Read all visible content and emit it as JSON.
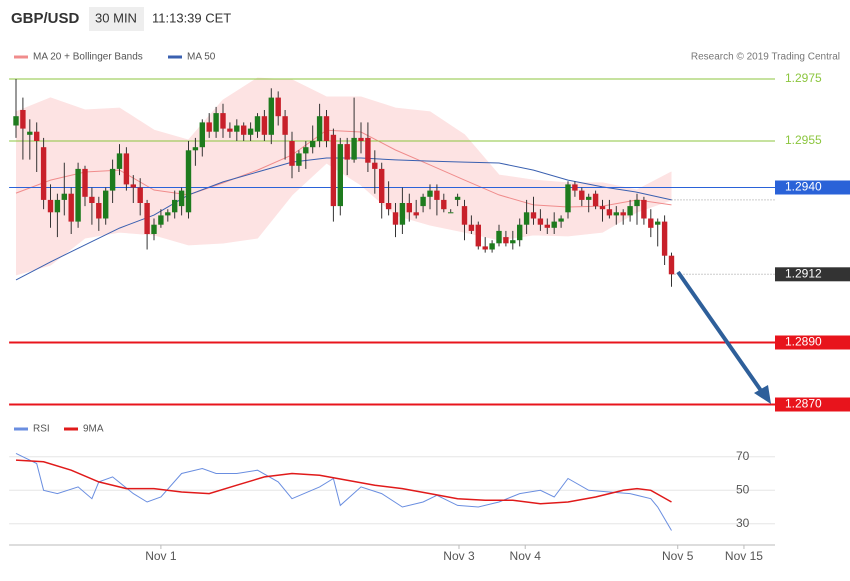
{
  "chart_data": {
    "type": "candlestick",
    "title": "GBP/USD",
    "timeframe": "30 MIN",
    "time": "11:13:39 CET",
    "source": "Research © 2019 Trading Central",
    "up_color": "#1e7b1e",
    "down_color": "#c8202a",
    "xlim": [
      -1,
      110
    ],
    "ylim": [
      1.2867,
      1.2978
    ],
    "xticks": [
      {
        "value": 21,
        "label": "Nov 1"
      },
      {
        "value": 64.2,
        "label": "Nov 3"
      },
      {
        "value": 73.8,
        "label": "Nov 4"
      },
      {
        "value": 95.9,
        "label": "Nov 5"
      },
      {
        "value": 105.5,
        "label": "Nov 15"
      }
    ],
    "open": [
      1.296,
      1.2965,
      1.2957,
      1.2958,
      1.2953,
      1.2936,
      1.2932,
      1.2936,
      1.2938,
      1.2929,
      1.2946,
      1.2937,
      1.2935,
      1.293,
      1.2939,
      1.2946,
      1.2951,
      1.2941,
      1.294,
      1.2935,
      1.2925,
      1.2928,
      1.2931,
      1.2932,
      1.2934,
      1.2932,
      1.2952,
      1.2953,
      1.2961,
      1.2958,
      1.2964,
      1.2959,
      1.2958,
      1.296,
      1.2957,
      1.2958,
      1.2963,
      1.2957,
      1.2969,
      1.2963,
      1.2955,
      1.2947,
      1.2951,
      1.2953,
      1.2955,
      1.2963,
      1.2957,
      1.2934,
      1.2954,
      1.2949,
      1.2956,
      1.2956,
      1.2948,
      1.2946,
      1.2935,
      1.2932,
      1.2928,
      1.2935,
      1.2932,
      1.2934,
      1.2937,
      1.2939,
      1.2936,
      1.2932,
      1.2936,
      1.2934,
      1.2928,
      1.2928,
      1.2921,
      1.292,
      1.2922,
      1.2924,
      1.2922,
      1.2923,
      1.2928,
      1.2932,
      1.293,
      1.2928,
      1.2927,
      1.2929,
      1.2932,
      1.2941,
      1.2939,
      1.2936,
      1.2938,
      1.2934,
      1.2933,
      1.2931,
      1.2932,
      1.2931,
      1.2934,
      1.2936,
      1.293,
      1.2928,
      1.2929,
      1.2918
    ],
    "high": [
      1.2975,
      1.2969,
      1.2962,
      1.2961,
      1.2956,
      1.2941,
      1.2938,
      1.2948,
      1.294,
      1.2948,
      1.2947,
      1.294,
      1.2937,
      1.294,
      1.2949,
      1.2954,
      1.2953,
      1.2944,
      1.2943,
      1.2936,
      1.293,
      1.2933,
      1.2933,
      1.2939,
      1.294,
      1.2955,
      1.2956,
      1.2962,
      1.2964,
      1.2966,
      1.2967,
      1.2961,
      1.2962,
      1.2961,
      1.2961,
      1.2964,
      1.2965,
      1.2972,
      1.2971,
      1.2965,
      1.2958,
      1.2952,
      1.2955,
      1.296,
      1.2967,
      1.2965,
      1.2959,
      1.2956,
      1.2956,
      1.2969,
      1.2961,
      1.2961,
      1.2952,
      1.2948,
      1.2942,
      1.2935,
      1.294,
      1.2938,
      1.2936,
      1.2938,
      1.2941,
      1.2941,
      1.2938,
      1.2933,
      1.2938,
      1.2936,
      1.2931,
      1.2929,
      1.2924,
      1.2923,
      1.2928,
      1.2926,
      1.2926,
      1.293,
      1.2936,
      1.2937,
      1.2933,
      1.293,
      1.2932,
      1.2931,
      1.2942,
      1.2942,
      1.294,
      1.2938,
      1.2939,
      1.2936,
      1.2936,
      1.2934,
      1.2933,
      1.2936,
      1.2938,
      1.2937,
      1.2933,
      1.293,
      1.2931,
      1.2919
    ],
    "low": [
      1.2956,
      1.2949,
      1.2949,
      1.2945,
      1.2933,
      1.2927,
      1.2924,
      1.2931,
      1.2925,
      1.2927,
      1.2934,
      1.2928,
      1.2926,
      1.2928,
      1.2935,
      1.2944,
      1.2939,
      1.2935,
      1.2931,
      1.292,
      1.2923,
      1.2927,
      1.2929,
      1.293,
      1.2931,
      1.293,
      1.2947,
      1.295,
      1.2956,
      1.2956,
      1.2956,
      1.2956,
      1.2955,
      1.2955,
      1.2955,
      1.2956,
      1.2955,
      1.2954,
      1.296,
      1.2949,
      1.2943,
      1.2945,
      1.2946,
      1.2951,
      1.2953,
      1.2953,
      1.2929,
      1.2931,
      1.2944,
      1.2948,
      1.2951,
      1.2945,
      1.2938,
      1.293,
      1.2931,
      1.2924,
      1.2925,
      1.2929,
      1.293,
      1.2932,
      1.2933,
      1.2931,
      1.2932,
      1.2932,
      1.2934,
      1.2923,
      1.2925,
      1.292,
      1.2919,
      1.2919,
      1.2921,
      1.2921,
      1.292,
      1.2921,
      1.2925,
      1.2928,
      1.2926,
      1.2925,
      1.2925,
      1.2927,
      1.293,
      1.2937,
      1.2934,
      1.2932,
      1.2933,
      1.2929,
      1.293,
      1.2928,
      1.2928,
      1.2929,
      1.2928,
      1.2928,
      1.2924,
      1.2921,
      1.2915,
      1.2908
    ],
    "close": [
      1.2963,
      1.2959,
      1.2958,
      1.2955,
      1.2936,
      1.2932,
      1.2936,
      1.2938,
      1.2929,
      1.2946,
      1.2937,
      1.2935,
      1.293,
      1.2939,
      1.2946,
      1.2951,
      1.2941,
      1.294,
      1.2935,
      1.2925,
      1.2928,
      1.2931,
      1.2932,
      1.2936,
      1.2939,
      1.2952,
      1.2953,
      1.2961,
      1.2958,
      1.2964,
      1.2959,
      1.2958,
      1.296,
      1.2957,
      1.2959,
      1.2963,
      1.2957,
      1.2969,
      1.2963,
      1.2957,
      1.2947,
      1.2951,
      1.2953,
      1.2955,
      1.2963,
      1.2955,
      1.2934,
      1.2954,
      1.2949,
      1.2956,
      1.2955,
      1.2948,
      1.2946,
      1.2935,
      1.2933,
      1.2928,
      1.2935,
      1.2932,
      1.2931,
      1.2937,
      1.2939,
      1.2936,
      1.2933,
      1.2932,
      1.2937,
      1.2928,
      1.2926,
      1.2921,
      1.292,
      1.2922,
      1.2926,
      1.2922,
      1.2923,
      1.2928,
      1.2932,
      1.293,
      1.2928,
      1.2927,
      1.2929,
      1.293,
      1.2941,
      1.2939,
      1.2936,
      1.2937,
      1.2934,
      1.2933,
      1.2931,
      1.2932,
      1.2931,
      1.2934,
      1.2936,
      1.293,
      1.2927,
      1.2929,
      1.2918,
      1.2912
    ],
    "bollinger": {
      "name": "MA 20 + Bollinger Bands",
      "color": "#f08c8c",
      "fill": "#fde3e3",
      "x": [
        0,
        5,
        10,
        15,
        20,
        25,
        30,
        35,
        40,
        45,
        50,
        55,
        60,
        65,
        70,
        75,
        80,
        85,
        90,
        95
      ],
      "ma": [
        1.29382,
        1.29424,
        1.2945,
        1.29456,
        1.29392,
        1.29376,
        1.29415,
        1.29456,
        1.29505,
        1.29585,
        1.29579,
        1.29521,
        1.29473,
        1.29424,
        1.29376,
        1.29344,
        1.29337,
        1.2934,
        1.2936,
        1.29344
      ],
      "upper": [
        1.29644,
        1.29689,
        1.2965,
        1.29656,
        1.29585,
        1.29553,
        1.29682,
        1.29753,
        1.29747,
        1.29692,
        1.29692,
        1.29656,
        1.29644,
        1.2957,
        1.2944,
        1.29424,
        1.29415,
        1.29415,
        1.29392,
        1.2945
      ],
      "lower": [
        1.29118,
        1.2915,
        1.29237,
        1.29256,
        1.29247,
        1.29215,
        1.29221,
        1.29237,
        1.29376,
        1.29479,
        1.29408,
        1.29311,
        1.29279,
        1.29256,
        1.29231,
        1.29247,
        1.29244,
        1.29256,
        1.29321,
        1.2936
      ]
    },
    "ma50": {
      "name": "MA 50",
      "color": "#3a60b0",
      "x": [
        0,
        5,
        10,
        15,
        20,
        25,
        30,
        35,
        40,
        45,
        50,
        55,
        60,
        65,
        70,
        75,
        80,
        85,
        90,
        95
      ],
      "values": [
        1.29102,
        1.2916,
        1.29215,
        1.29269,
        1.29311,
        1.29376,
        1.29418,
        1.2945,
        1.29482,
        1.29495,
        1.29495,
        1.29489,
        1.29485,
        1.29482,
        1.29479,
        1.29456,
        1.29424,
        1.29402,
        1.29385,
        1.2936
      ]
    },
    "levels": [
      {
        "price": 1.2975,
        "color": "#8cc63f",
        "style": "text"
      },
      {
        "price": 1.2955,
        "color": "#8cc63f",
        "style": "text"
      },
      {
        "price": {
          "value": 1.294,
          "label": "1.2940"
        },
        "color": "#2a62d8",
        "style": "box"
      },
      {
        "price": 1.2912,
        "color": "#333333",
        "style": "dotted-box"
      },
      {
        "price": {
          "value": 1.289,
          "label": "1.2890"
        },
        "color": "#e8141c",
        "style": "box"
      },
      {
        "price": {
          "value": 1.287,
          "label": "1.2870"
        },
        "color": "#e8141c",
        "style": "box"
      }
    ],
    "marker_level": 1.2936,
    "rsi": {
      "ylim": [
        22,
        80
      ],
      "yticks": [
        30,
        50,
        70
      ],
      "series": [
        {
          "name": "RSI",
          "color": "#6a8ee0",
          "x": [
            0,
            3,
            4,
            6,
            9,
            11,
            12,
            14,
            17,
            19,
            21,
            24,
            27,
            29,
            32,
            35,
            38,
            40,
            44,
            46,
            47,
            50,
            53,
            56,
            59,
            61,
            64,
            67,
            70,
            73,
            76,
            78,
            80,
            83,
            86,
            89,
            92,
            93,
            95
          ],
          "values": [
            72,
            66,
            50,
            48,
            52,
            45,
            55,
            58,
            48,
            43,
            46,
            60,
            63,
            60,
            60,
            62,
            55,
            45,
            52,
            57,
            41,
            52,
            48,
            40,
            43,
            47,
            41,
            40,
            43,
            48,
            50,
            46,
            57,
            50,
            49,
            48,
            45,
            40,
            26
          ]
        },
        {
          "name": "9MA",
          "color": "#e01a1a",
          "x": [
            0,
            4,
            8,
            12,
            16,
            20,
            24,
            28,
            32,
            36,
            40,
            44,
            48,
            52,
            56,
            60,
            64,
            68,
            72,
            76,
            80,
            84,
            88,
            90,
            92,
            95
          ],
          "values": [
            68,
            67,
            62,
            55,
            51,
            51,
            49,
            48,
            53,
            58,
            60,
            59,
            56,
            53,
            51,
            48,
            45,
            44,
            44,
            42,
            43,
            46,
            50,
            51,
            50,
            43
          ]
        }
      ]
    }
  }
}
